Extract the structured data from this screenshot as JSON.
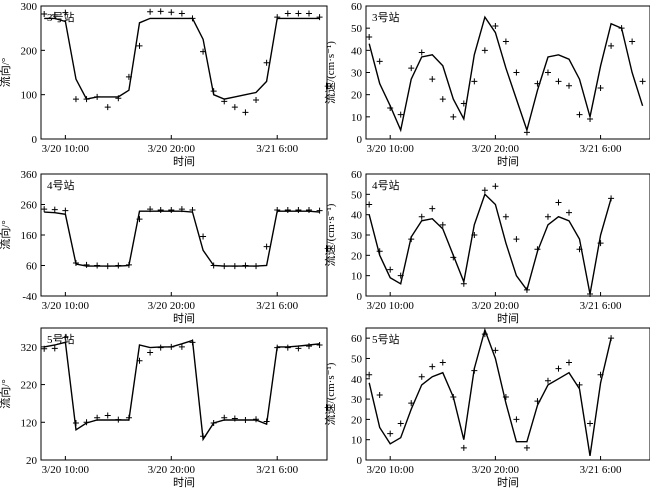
{
  "figure": {
    "xlabel": "时间",
    "xticks": [
      {
        "label": "3/20 10:00",
        "t": 2
      },
      {
        "label": "3/20 20:00",
        "t": 12
      },
      {
        "label": "3/21 6:00",
        "t": 22
      }
    ]
  },
  "chart_data": [
    {
      "id": "p3dir",
      "type": "line+scatter",
      "station": "3号站",
      "ylabel": "流向/°",
      "xlim": [
        -0.3,
        26.7
      ],
      "ylim": [
        0,
        300
      ],
      "yticks": [
        0,
        100,
        200,
        300
      ],
      "observed_marker": "+",
      "grid": false,
      "line": [
        [
          0,
          272
        ],
        [
          1,
          272
        ],
        [
          2,
          265
        ],
        [
          3,
          135
        ],
        [
          4,
          90
        ],
        [
          5,
          95
        ],
        [
          6,
          95
        ],
        [
          7,
          95
        ],
        [
          8,
          110
        ],
        [
          9,
          262
        ],
        [
          10,
          272
        ],
        [
          11,
          272
        ],
        [
          12,
          272
        ],
        [
          13,
          272
        ],
        [
          14,
          272
        ],
        [
          15,
          225
        ],
        [
          16,
          100
        ],
        [
          17,
          90
        ],
        [
          18,
          95
        ],
        [
          19,
          100
        ],
        [
          20,
          105
        ],
        [
          21,
          130
        ],
        [
          22,
          272
        ],
        [
          23,
          272
        ],
        [
          24,
          272
        ],
        [
          25,
          272
        ],
        [
          26,
          272
        ]
      ],
      "points": [
        [
          0,
          282
        ],
        [
          1,
          280
        ],
        [
          2,
          285
        ],
        [
          3,
          90
        ],
        [
          4,
          90
        ],
        [
          5,
          95
        ],
        [
          6,
          72
        ],
        [
          7,
          92
        ],
        [
          8,
          140
        ],
        [
          9,
          210
        ],
        [
          10,
          287
        ],
        [
          11,
          288
        ],
        [
          12,
          286
        ],
        [
          13,
          283
        ],
        [
          14,
          272
        ],
        [
          15,
          197
        ],
        [
          16,
          108
        ],
        [
          17,
          85
        ],
        [
          18,
          72
        ],
        [
          19,
          60
        ],
        [
          20,
          88
        ],
        [
          21,
          172
        ],
        [
          22,
          275
        ],
        [
          23,
          283
        ],
        [
          24,
          283
        ],
        [
          25,
          283
        ],
        [
          26,
          275
        ]
      ]
    },
    {
      "id": "p3spd",
      "type": "line+scatter",
      "station": "3号站",
      "ylabel": "流速/(cm·s⁻¹)",
      "xlim": [
        -0.3,
        26.7
      ],
      "ylim": [
        0,
        60
      ],
      "yticks": [
        0,
        10,
        20,
        30,
        40,
        50,
        60
      ],
      "observed_marker": "+",
      "grid": false,
      "line": [
        [
          0,
          43
        ],
        [
          1,
          25
        ],
        [
          2,
          15
        ],
        [
          3,
          4
        ],
        [
          4,
          27
        ],
        [
          5,
          37
        ],
        [
          6,
          38
        ],
        [
          7,
          33
        ],
        [
          8,
          18
        ],
        [
          9,
          9
        ],
        [
          10,
          38
        ],
        [
          11,
          55
        ],
        [
          12,
          48
        ],
        [
          13,
          32
        ],
        [
          14,
          18
        ],
        [
          15,
          4
        ],
        [
          16,
          22
        ],
        [
          17,
          37
        ],
        [
          18,
          38
        ],
        [
          19,
          36
        ],
        [
          20,
          27
        ],
        [
          21,
          10
        ],
        [
          22,
          33
        ],
        [
          23,
          52
        ],
        [
          24,
          50
        ],
        [
          25,
          30
        ],
        [
          26,
          15
        ]
      ],
      "points": [
        [
          0,
          46
        ],
        [
          1,
          35
        ],
        [
          2,
          14
        ],
        [
          3,
          11
        ],
        [
          4,
          32
        ],
        [
          5,
          39
        ],
        [
          6,
          27
        ],
        [
          7,
          18
        ],
        [
          8,
          10
        ],
        [
          9,
          16
        ],
        [
          10,
          26
        ],
        [
          11,
          40
        ],
        [
          12,
          51
        ],
        [
          13,
          44
        ],
        [
          14,
          30
        ],
        [
          15,
          3
        ],
        [
          16,
          25
        ],
        [
          17,
          30
        ],
        [
          18,
          26
        ],
        [
          19,
          24
        ],
        [
          20,
          11
        ],
        [
          21,
          9
        ],
        [
          22,
          23
        ],
        [
          23,
          42
        ],
        [
          24,
          50
        ],
        [
          25,
          44
        ],
        [
          26,
          26
        ]
      ]
    },
    {
      "id": "p4dir",
      "type": "line+scatter",
      "station": "4号站",
      "ylabel": "流向/°",
      "xlim": [
        -0.3,
        26.7
      ],
      "ylim": [
        -40,
        360
      ],
      "yticks": [
        -40,
        60,
        160,
        260,
        360
      ],
      "observed_marker": "+",
      "grid": false,
      "line": [
        [
          0,
          235
        ],
        [
          1,
          233
        ],
        [
          2,
          228
        ],
        [
          3,
          65
        ],
        [
          4,
          58
        ],
        [
          5,
          58
        ],
        [
          6,
          58
        ],
        [
          7,
          58
        ],
        [
          8,
          60
        ],
        [
          9,
          238
        ],
        [
          10,
          238
        ],
        [
          11,
          238
        ],
        [
          12,
          238
        ],
        [
          13,
          238
        ],
        [
          14,
          235
        ],
        [
          15,
          110
        ],
        [
          16,
          60
        ],
        [
          17,
          58
        ],
        [
          18,
          58
        ],
        [
          19,
          58
        ],
        [
          20,
          58
        ],
        [
          21,
          60
        ],
        [
          22,
          238
        ],
        [
          23,
          238
        ],
        [
          24,
          238
        ],
        [
          25,
          238
        ],
        [
          26,
          235
        ]
      ],
      "points": [
        [
          0,
          245
        ],
        [
          1,
          243
        ],
        [
          2,
          240
        ],
        [
          3,
          68
        ],
        [
          4,
          62
        ],
        [
          5,
          60
        ],
        [
          6,
          58
        ],
        [
          7,
          60
        ],
        [
          8,
          62
        ],
        [
          9,
          212
        ],
        [
          10,
          245
        ],
        [
          11,
          242
        ],
        [
          12,
          242
        ],
        [
          13,
          245
        ],
        [
          14,
          242
        ],
        [
          15,
          155
        ],
        [
          16,
          60
        ],
        [
          17,
          58
        ],
        [
          18,
          58
        ],
        [
          19,
          60
        ],
        [
          20,
          58
        ],
        [
          21,
          122
        ],
        [
          22,
          242
        ],
        [
          23,
          242
        ],
        [
          24,
          242
        ],
        [
          25,
          242
        ],
        [
          26,
          240
        ]
      ]
    },
    {
      "id": "p4spd",
      "type": "line+scatter",
      "station": "4号站",
      "ylabel": "流速/(cm·s⁻¹)",
      "xlim": [
        -0.3,
        26.7
      ],
      "ylim": [
        0,
        60
      ],
      "yticks": [
        0,
        10,
        20,
        30,
        40,
        50,
        60
      ],
      "observed_marker": "+",
      "grid": false,
      "line": [
        [
          0,
          40
        ],
        [
          1,
          20
        ],
        [
          2,
          9
        ],
        [
          3,
          6
        ],
        [
          4,
          29
        ],
        [
          5,
          37
        ],
        [
          6,
          38
        ],
        [
          7,
          33
        ],
        [
          8,
          20
        ],
        [
          9,
          7
        ],
        [
          10,
          35
        ],
        [
          11,
          50
        ],
        [
          12,
          45
        ],
        [
          13,
          26
        ],
        [
          14,
          10
        ],
        [
          15,
          3
        ],
        [
          16,
          22
        ],
        [
          17,
          35
        ],
        [
          18,
          39
        ],
        [
          19,
          37
        ],
        [
          20,
          28
        ],
        [
          21,
          1
        ],
        [
          22,
          30
        ],
        [
          23,
          48
        ]
      ],
      "points": [
        [
          0,
          45
        ],
        [
          1,
          22
        ],
        [
          2,
          13
        ],
        [
          3,
          10
        ],
        [
          4,
          28
        ],
        [
          5,
          39
        ],
        [
          6,
          43
        ],
        [
          7,
          35
        ],
        [
          8,
          19
        ],
        [
          9,
          6
        ],
        [
          10,
          30
        ],
        [
          11,
          52
        ],
        [
          12,
          54
        ],
        [
          13,
          39
        ],
        [
          14,
          28
        ],
        [
          15,
          3
        ],
        [
          16,
          23
        ],
        [
          17,
          39
        ],
        [
          18,
          46
        ],
        [
          19,
          41
        ],
        [
          20,
          23
        ],
        [
          21,
          1
        ],
        [
          22,
          26
        ],
        [
          23,
          48
        ]
      ]
    },
    {
      "id": "p5dir",
      "type": "line+scatter",
      "station": "5号站",
      "ylabel": "流向/°",
      "xlim": [
        -0.3,
        26.7
      ],
      "ylim": [
        20,
        370
      ],
      "yticks": [
        20,
        120,
        220,
        320
      ],
      "observed_marker": "+",
      "grid": false,
      "line": [
        [
          0,
          320
        ],
        [
          1,
          325
        ],
        [
          2,
          332
        ],
        [
          3,
          100
        ],
        [
          4,
          118
        ],
        [
          5,
          126
        ],
        [
          6,
          126
        ],
        [
          7,
          126
        ],
        [
          8,
          126
        ],
        [
          9,
          325
        ],
        [
          10,
          318
        ],
        [
          11,
          320
        ],
        [
          12,
          320
        ],
        [
          13,
          328
        ],
        [
          14,
          337
        ],
        [
          15,
          75
        ],
        [
          16,
          118
        ],
        [
          17,
          126
        ],
        [
          18,
          126
        ],
        [
          19,
          126
        ],
        [
          20,
          126
        ],
        [
          21,
          115
        ],
        [
          22,
          320
        ],
        [
          23,
          320
        ],
        [
          24,
          322
        ],
        [
          25,
          325
        ],
        [
          26,
          328
        ]
      ],
      "points": [
        [
          0,
          315
        ],
        [
          1,
          316
        ],
        [
          2,
          345
        ],
        [
          3,
          118
        ],
        [
          4,
          120
        ],
        [
          5,
          132
        ],
        [
          6,
          138
        ],
        [
          7,
          127
        ],
        [
          8,
          132
        ],
        [
          9,
          283
        ],
        [
          10,
          305
        ],
        [
          11,
          318
        ],
        [
          12,
          320
        ],
        [
          13,
          320
        ],
        [
          14,
          332
        ],
        [
          15,
          83
        ],
        [
          16,
          118
        ],
        [
          17,
          132
        ],
        [
          18,
          130
        ],
        [
          19,
          126
        ],
        [
          20,
          128
        ],
        [
          21,
          122
        ],
        [
          22,
          318
        ],
        [
          23,
          318
        ],
        [
          24,
          316
        ],
        [
          25,
          322
        ],
        [
          26,
          325
        ]
      ]
    },
    {
      "id": "p5spd",
      "type": "line+scatter",
      "station": "5号站",
      "ylabel": "流速/(cm·s⁻¹)",
      "xlim": [
        -0.3,
        26.7
      ],
      "ylim": [
        0,
        65
      ],
      "yticks": [
        0,
        10,
        20,
        30,
        40,
        50,
        60
      ],
      "observed_marker": "+",
      "grid": false,
      "line": [
        [
          0,
          38
        ],
        [
          1,
          16
        ],
        [
          2,
          8
        ],
        [
          3,
          11
        ],
        [
          4,
          25
        ],
        [
          5,
          37
        ],
        [
          6,
          41
        ],
        [
          7,
          43
        ],
        [
          8,
          31
        ],
        [
          9,
          10
        ],
        [
          10,
          45
        ],
        [
          11,
          64
        ],
        [
          12,
          50
        ],
        [
          13,
          28
        ],
        [
          14,
          9
        ],
        [
          15,
          9
        ],
        [
          16,
          27
        ],
        [
          17,
          37
        ],
        [
          18,
          40
        ],
        [
          19,
          43
        ],
        [
          20,
          35
        ],
        [
          21,
          2
        ],
        [
          22,
          38
        ],
        [
          23,
          60
        ]
      ],
      "points": [
        [
          0,
          42
        ],
        [
          1,
          32
        ],
        [
          2,
          13
        ],
        [
          3,
          18
        ],
        [
          4,
          28
        ],
        [
          5,
          41
        ],
        [
          6,
          46
        ],
        [
          7,
          48
        ],
        [
          8,
          31
        ],
        [
          9,
          6
        ],
        [
          10,
          44
        ],
        [
          11,
          62
        ],
        [
          12,
          54
        ],
        [
          13,
          31
        ],
        [
          14,
          20
        ],
        [
          15,
          6
        ],
        [
          16,
          29
        ],
        [
          17,
          39
        ],
        [
          18,
          45
        ],
        [
          19,
          48
        ],
        [
          20,
          37
        ],
        [
          21,
          18
        ],
        [
          22,
          42
        ],
        [
          23,
          60
        ]
      ]
    }
  ]
}
